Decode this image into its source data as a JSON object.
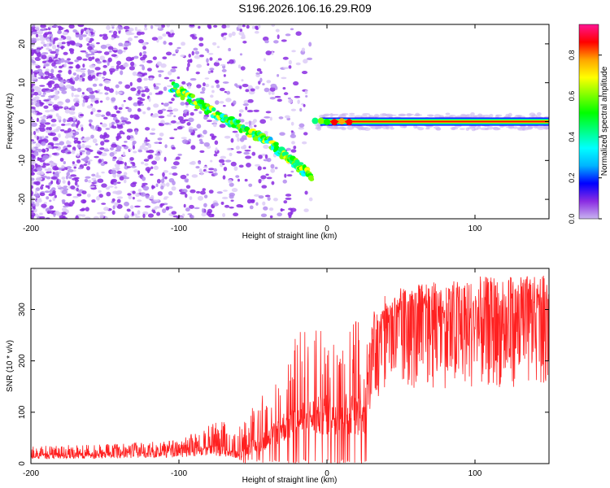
{
  "title": "S196.2026.106.16.29.R09",
  "chart_data": [
    {
      "type": "heatmap",
      "xlabel": "Height of straight line (km)",
      "ylabel": "Frequency (Hz)",
      "xlim": [
        -200,
        150
      ],
      "ylim": [
        -25,
        25
      ],
      "x_ticks": [
        -200,
        -100,
        0,
        100
      ],
      "y_ticks": [
        20,
        10,
        0,
        -10,
        -20
      ],
      "grid": false,
      "colorbar": {
        "label": "Normalized spectral amplitude",
        "range": [
          0,
          0.95
        ],
        "ticks": [
          0.0,
          0.2,
          0.4,
          0.6,
          0.8
        ],
        "stops": [
          "#c8b4f0",
          "#8a2be2",
          "#0000ff",
          "#00b4ff",
          "#00ffff",
          "#00ff7f",
          "#00ff00",
          "#7fff00",
          "#ffff00",
          "#ffa500",
          "#ff0000",
          "#ff1493"
        ]
      },
      "features": {
        "descending_track": {
          "x": [
            -105,
            -80,
            -60,
            -40,
            -25,
            -10
          ],
          "y": [
            9,
            3,
            -1,
            -5,
            -10,
            -14
          ]
        },
        "carrier_line": {
          "x_start": -10,
          "x_end": 150,
          "frequency": 0
        },
        "noise_region_x": [
          -200,
          -10
        ]
      }
    },
    {
      "type": "line",
      "xlabel": "Height of straight line (km)",
      "ylabel": "SNR (10 * v/v)",
      "xlim": [
        -200,
        150
      ],
      "ylim": [
        0,
        380
      ],
      "x_ticks": [
        -200,
        -100,
        0,
        100
      ],
      "y_ticks": [
        0,
        100,
        200,
        300
      ],
      "series": [
        {
          "name": "SNR",
          "color": "#ff2020",
          "x": [
            -200,
            -150,
            -100,
            -80,
            -70,
            -60,
            -50,
            -40,
            -30,
            -20,
            -10,
            0,
            10,
            20,
            25,
            30,
            40,
            60,
            80,
            100,
            120,
            150
          ],
          "baseline": [
            15,
            17,
            22,
            28,
            25,
            18,
            35,
            50,
            75,
            85,
            95,
            100,
            105,
            100,
            90,
            200,
            250,
            260,
            265,
            270,
            270,
            275
          ],
          "spike_top": [
            35,
            38,
            45,
            75,
            85,
            70,
            110,
            150,
            220,
            260,
            300,
            230,
            250,
            290,
            260,
            290,
            330,
            350,
            350,
            355,
            370,
            360
          ]
        }
      ]
    }
  ]
}
